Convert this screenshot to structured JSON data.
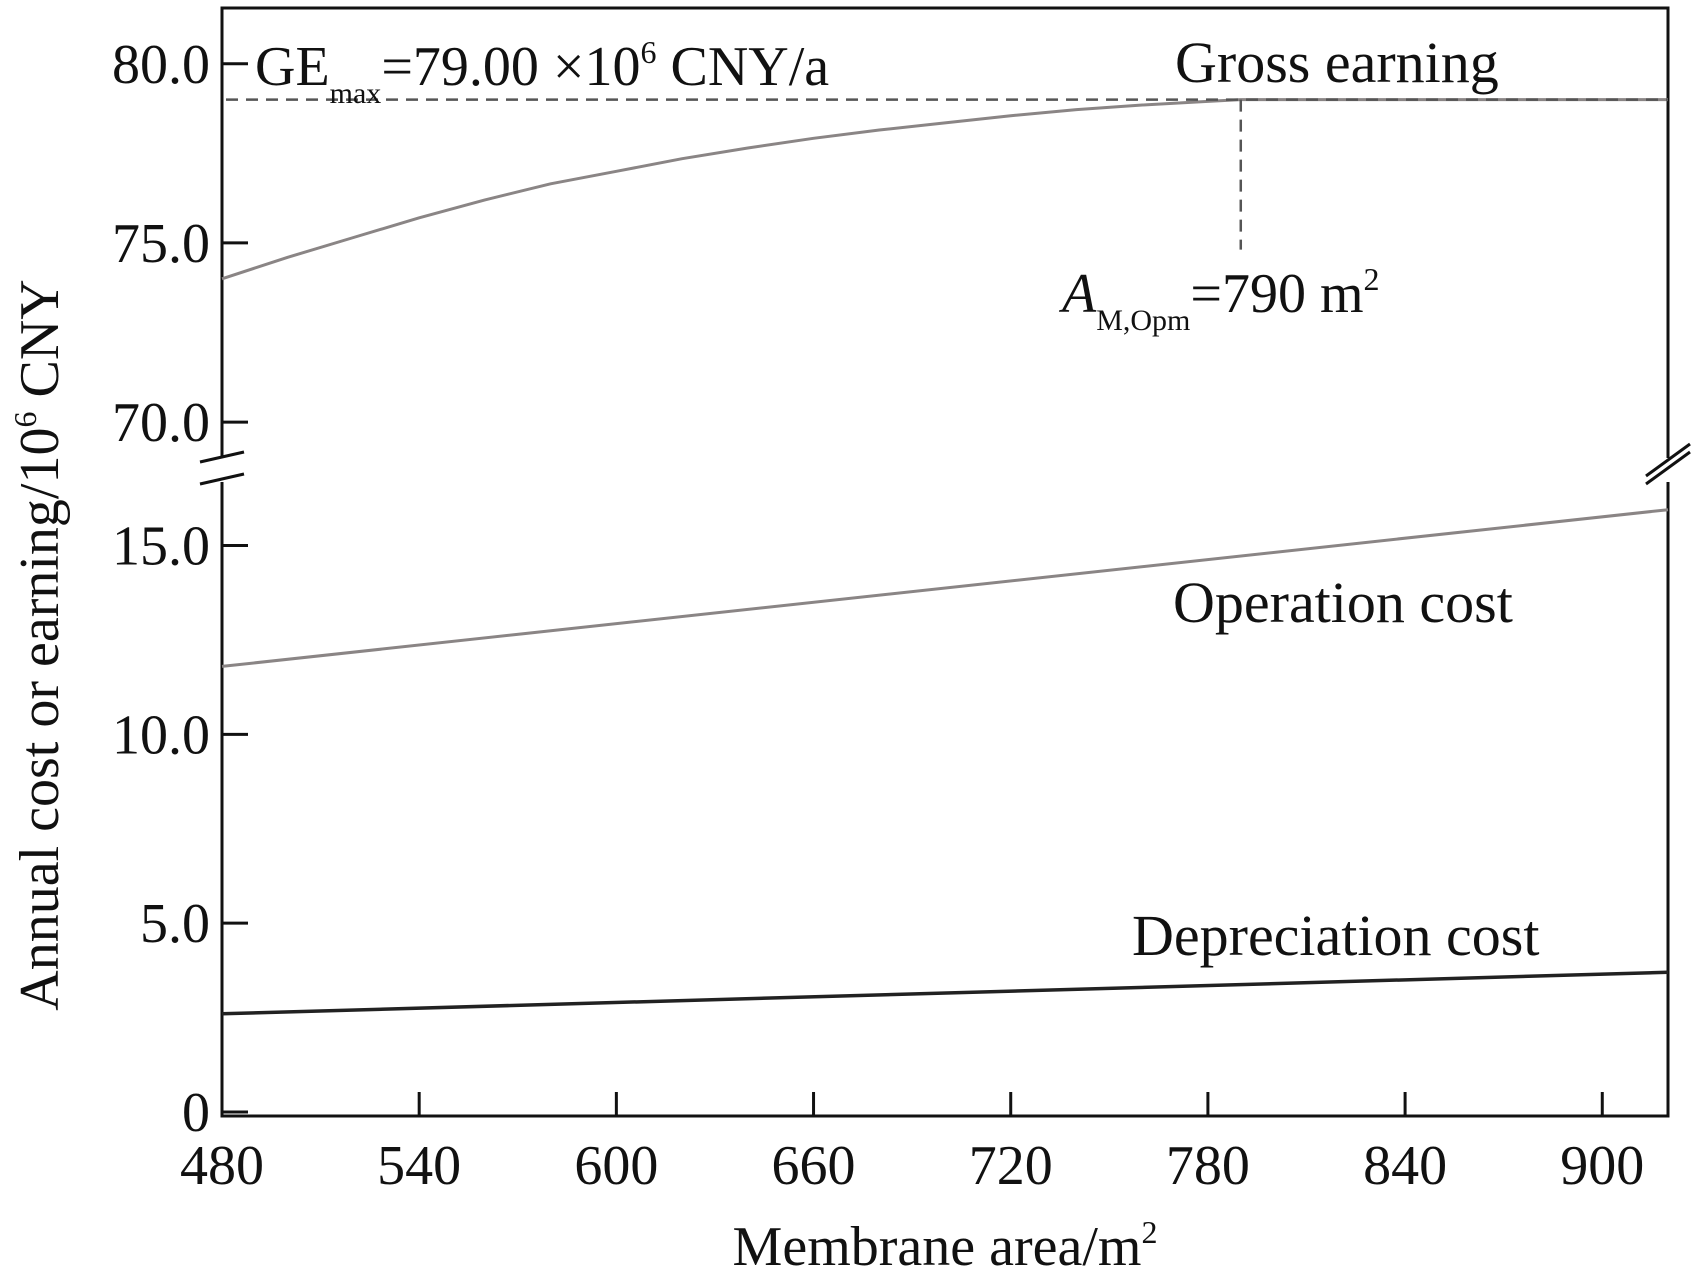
{
  "chart_data": {
    "type": "line",
    "xlabel_prefix": "Membrane area/m",
    "xlabel_sup": "2",
    "ylabel_prefix": "Annual cost or earning/10",
    "ylabel_sup": "6",
    "ylabel_suffix": " CNY",
    "xlim": [
      480,
      920
    ],
    "x_ticks": [
      480,
      540,
      600,
      660,
      720,
      780,
      840,
      900
    ],
    "x_tick_labels": [
      "480",
      "540",
      "600",
      "660",
      "720",
      "780",
      "840",
      "900"
    ],
    "y_lower_range": [
      0,
      17
    ],
    "y_upper_range": [
      69.5,
      81.5
    ],
    "y_ticks_lower": [
      0,
      5.0,
      10.0,
      15.0
    ],
    "y_ticks_lower_labels": [
      "0",
      "5.0",
      "10.0",
      "15.0"
    ],
    "y_ticks_upper": [
      70.0,
      75.0,
      80.0
    ],
    "y_ticks_upper_labels": [
      "70.0",
      "75.0",
      "80.0"
    ],
    "axis_break": true,
    "series": [
      {
        "name": "Gross earning",
        "color": "#8a8585",
        "x": [
          480,
          500,
          520,
          540,
          560,
          580,
          600,
          620,
          640,
          660,
          680,
          700,
          720,
          740,
          760,
          780,
          790,
          800,
          820,
          840,
          860,
          880,
          900,
          920
        ],
        "values": [
          74.0,
          74.6,
          75.15,
          75.7,
          76.2,
          76.65,
          77.0,
          77.35,
          77.65,
          77.92,
          78.15,
          78.35,
          78.55,
          78.72,
          78.85,
          78.95,
          79.0,
          79.0,
          79.0,
          79.0,
          79.0,
          79.0,
          79.0,
          79.0
        ]
      },
      {
        "name": "Operation cost",
        "color": "#8a8585",
        "x": [
          480,
          920
        ],
        "values": [
          11.8,
          15.95
        ]
      },
      {
        "name": "Depreciation cost",
        "color": "#222222",
        "x": [
          480,
          920
        ],
        "values": [
          2.6,
          3.7
        ]
      }
    ],
    "reference_lines": {
      "ge_max": {
        "value": 79.0,
        "label_main": "GE",
        "label_sub": "max",
        "label_tail": "=79.00 ×10",
        "label_sup": "6",
        "label_end": " CNY/a"
      },
      "a_opt": {
        "x": 790,
        "label_main": "A",
        "label_sub": "M,Opm",
        "label_tail": "=790 m",
        "label_sup": "2"
      }
    },
    "series_labels": {
      "gross": "Gross earning",
      "operation": "Operation cost",
      "depreciation": "Depreciation cost"
    }
  }
}
